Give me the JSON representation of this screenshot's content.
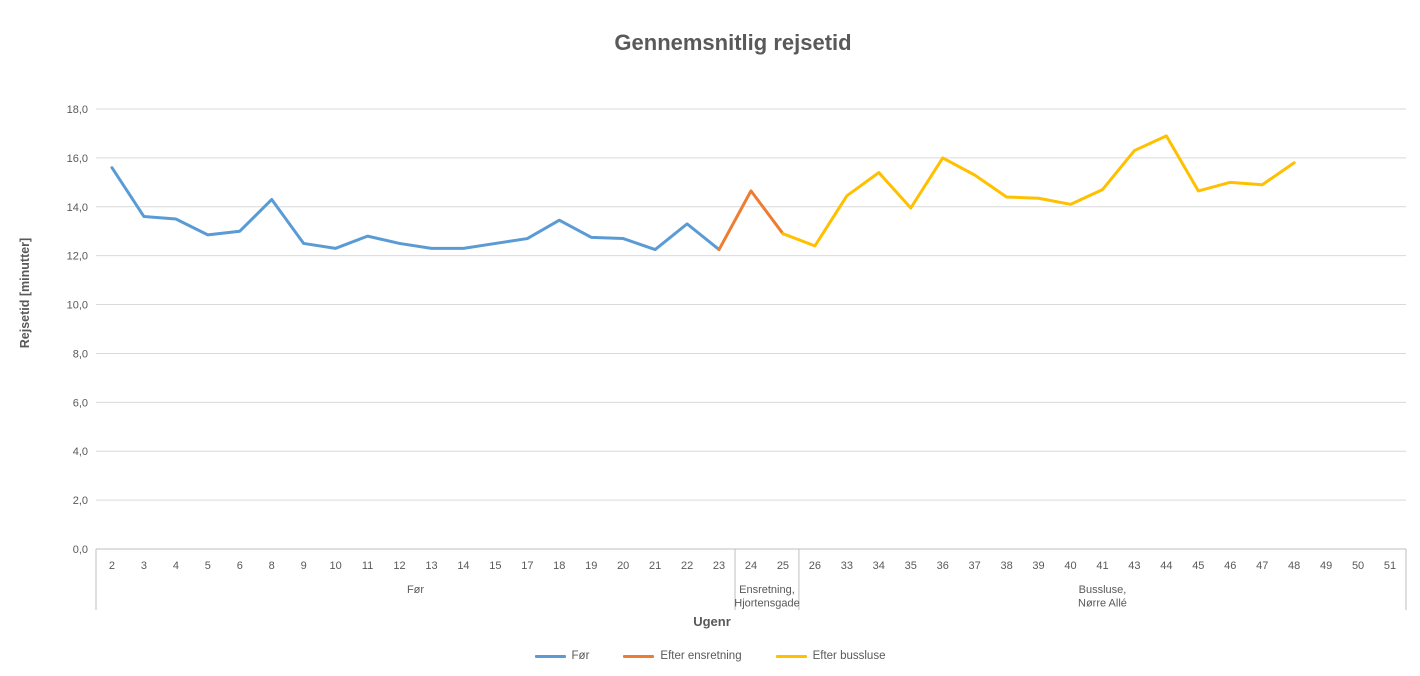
{
  "chart_data": {
    "type": "line",
    "title": "Gennemsnitlig rejsetid",
    "xlabel": "Ugenr",
    "ylabel": "Rejsetid [minutter]",
    "ylim": [
      0,
      18
    ],
    "y_tick_step": 2,
    "y_tick_labels": [
      "0,0",
      "2,0",
      "4,0",
      "6,0",
      "8,0",
      "10,0",
      "12,0",
      "14,0",
      "16,0",
      "18,0"
    ],
    "grid": "horizontal",
    "legend_position": "bottom",
    "categories": [
      "2",
      "3",
      "4",
      "5",
      "6",
      "8",
      "9",
      "10",
      "11",
      "12",
      "13",
      "14",
      "15",
      "17",
      "18",
      "19",
      "20",
      "21",
      "22",
      "23",
      "24",
      "25",
      "26",
      "33",
      "34",
      "35",
      "36",
      "37",
      "38",
      "39",
      "40",
      "41",
      "43",
      "44",
      "45",
      "46",
      "47",
      "48",
      "49",
      "50",
      "51"
    ],
    "groups": [
      {
        "lines": [
          "Før"
        ],
        "start": "2",
        "end": "23"
      },
      {
        "lines": [
          "Ensretning,",
          "Hjortensgade"
        ],
        "start": "24",
        "end": "25"
      },
      {
        "lines": [
          "Bussluse,",
          "Nørre Allé"
        ],
        "start": "26",
        "end": "51"
      }
    ],
    "series": [
      {
        "name": "Før",
        "color": "#5B9BD5",
        "weeks": [
          "2",
          "3",
          "4",
          "5",
          "6",
          "8",
          "9",
          "10",
          "11",
          "12",
          "13",
          "14",
          "15",
          "17",
          "18",
          "19",
          "20",
          "21",
          "22",
          "23"
        ],
        "values": [
          15.6,
          13.6,
          13.5,
          12.85,
          13.0,
          14.3,
          12.5,
          12.3,
          12.8,
          12.5,
          12.3,
          12.3,
          12.5,
          12.7,
          13.45,
          12.75,
          12.7,
          12.25,
          13.3,
          12.25
        ]
      },
      {
        "name": "Efter ensretning",
        "color": "#ED7D31",
        "weeks": [
          "23",
          "24",
          "25"
        ],
        "values": [
          12.25,
          14.65,
          12.9
        ]
      },
      {
        "name": "Efter bussluse",
        "color": "#FFC000",
        "weeks": [
          "25",
          "26",
          "33",
          "34",
          "35",
          "36",
          "37",
          "38",
          "39",
          "40",
          "41",
          "43",
          "44",
          "45",
          "46",
          "47",
          "48"
        ],
        "values": [
          12.9,
          12.4,
          14.45,
          15.4,
          13.95,
          16.0,
          15.3,
          14.4,
          14.35,
          14.1,
          14.7,
          16.3,
          16.9,
          14.65,
          15.0,
          14.9,
          15.8
        ]
      }
    ],
    "colors": {
      "gridline": "#D9D9D9",
      "axis_line": "#BFBFBF",
      "tick_text": "#595959",
      "title_text": "#595959"
    }
  }
}
